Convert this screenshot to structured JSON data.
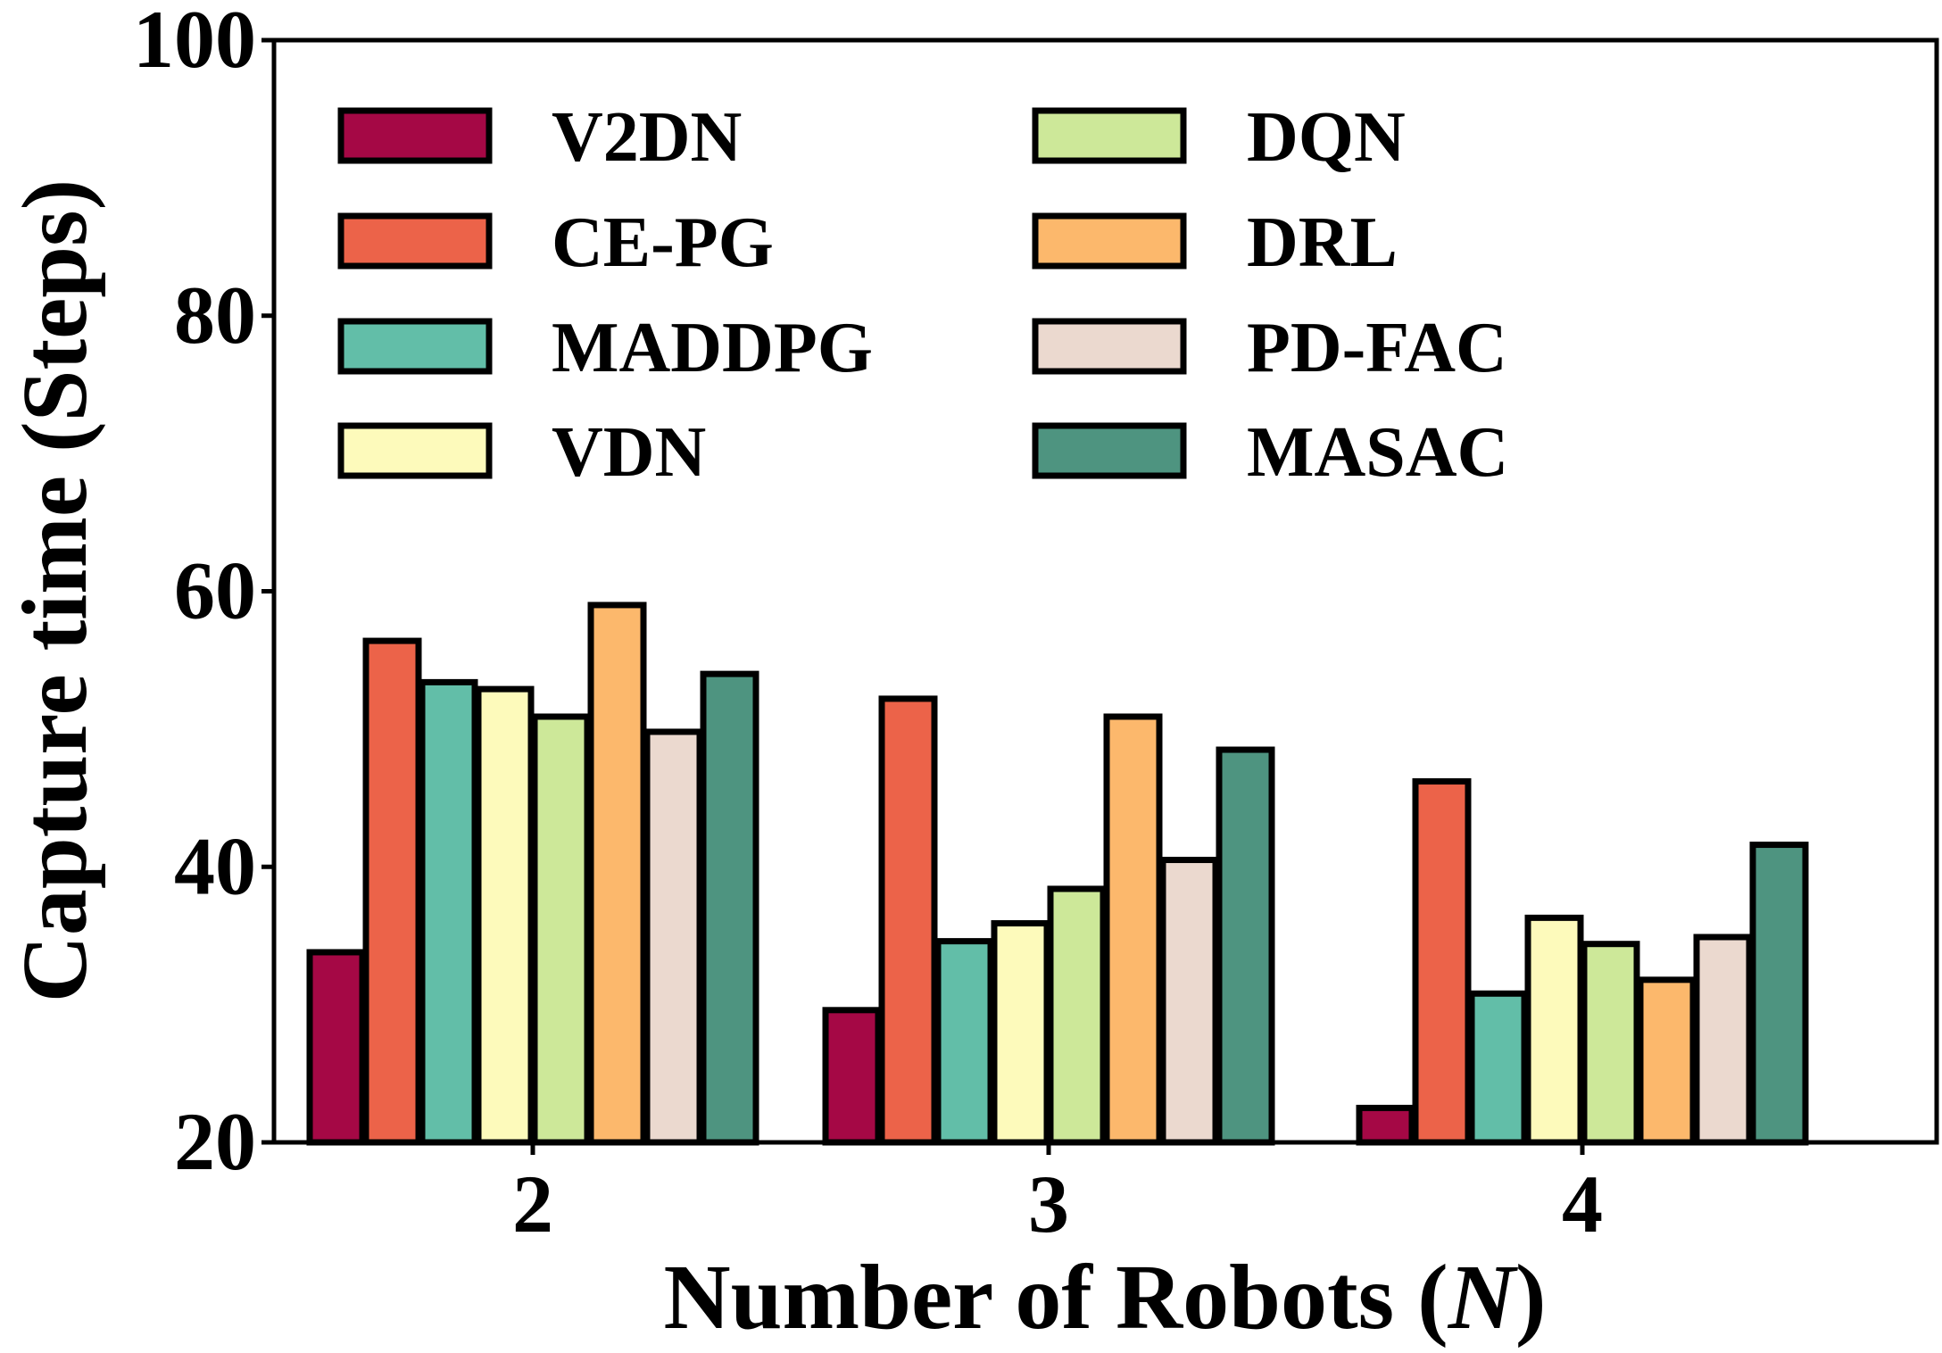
{
  "chart_data": {
    "type": "bar",
    "xlabel": "Number of Robots (",
    "xlabel_var": "N",
    "xlabel_end": ")",
    "ylabel": "Capture time (Steps)",
    "categories": [
      "2",
      "3",
      "4"
    ],
    "ylim": [
      20,
      100
    ],
    "yticks": [
      "20",
      "40",
      "60",
      "80",
      "100"
    ],
    "grid": false,
    "legend_position": "top-left",
    "legend_columns": 2,
    "series": [
      {
        "name": "V2DN",
        "color": "#a50845",
        "values": [
          33.8,
          29.6,
          22.5
        ]
      },
      {
        "name": "CE-PG",
        "color": "#ec6349",
        "values": [
          56.4,
          52.2,
          46.2
        ]
      },
      {
        "name": "MADDPG",
        "color": "#62bea8",
        "values": [
          53.4,
          34.6,
          30.8
        ]
      },
      {
        "name": "VDN",
        "color": "#fdfabb",
        "values": [
          52.9,
          35.9,
          36.3
        ]
      },
      {
        "name": "DQN",
        "color": "#cde899",
        "values": [
          50.9,
          38.4,
          34.4
        ]
      },
      {
        "name": "DRL",
        "color": "#fcb86c",
        "values": [
          59.0,
          50.9,
          31.8
        ]
      },
      {
        "name": "PD-FAC",
        "color": "#ebd9cf",
        "values": [
          49.8,
          40.5,
          34.9
        ]
      },
      {
        "name": "MASAC",
        "color": "#4e9480",
        "values": [
          54.0,
          48.5,
          41.6
        ]
      }
    ]
  }
}
